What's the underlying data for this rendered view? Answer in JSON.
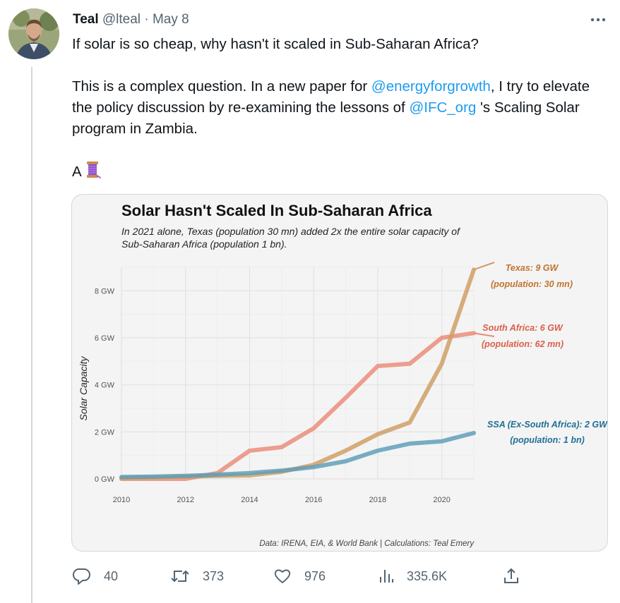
{
  "tweet": {
    "author_name": "Teal",
    "author_handle": "@lteal",
    "date": "May 8",
    "separator": " · ",
    "line1": "If solar is so cheap, why hasn't it scaled in Sub-Saharan Africa?",
    "para2_a": "This is a complex question. In a new paper for ",
    "mention1": "@energyforgrowth",
    "para2_b": ", I try to elevate the policy discussion by re-examining the lessons of ",
    "mention2": "@IFC_org",
    "para2_c": " 's Scaling Solar program in Zambia.",
    "para3": "A",
    "thread_emoji": "spool-of-thread-icon"
  },
  "chart_data": {
    "type": "line",
    "title": "Solar Hasn't Scaled In Sub-Saharan Africa",
    "subtitle_line1": "In 2021 alone, Texas (population 30 mn) added 2x the entire solar capacity of",
    "subtitle_line2": "Sub-Saharan Africa (population 1 bn).",
    "ylabel": "Solar Capacity",
    "xlabel": "",
    "source": "Data: IRENA, EIA, & World Bank | Calculations: Teal Emery",
    "xlim": [
      2010,
      2021
    ],
    "ylim": [
      0,
      9
    ],
    "x_ticks": [
      2010,
      2012,
      2014,
      2016,
      2018,
      2020
    ],
    "y_ticks": [
      {
        "value": 0,
        "label": "0 GW"
      },
      {
        "value": 2,
        "label": "2 GW"
      },
      {
        "value": 4,
        "label": "4 GW"
      },
      {
        "value": 6,
        "label": "6 GW"
      },
      {
        "value": 8,
        "label": "8 GW"
      }
    ],
    "grid": true,
    "x": [
      2010,
      2011,
      2012,
      2013,
      2014,
      2015,
      2016,
      2017,
      2018,
      2019,
      2020,
      2021
    ],
    "series": [
      {
        "name": "South Africa",
        "label_line1": "South Africa: 6 GW",
        "label_line2": "(population: 62 mn)",
        "color": "#ea8a78",
        "values": [
          0.0,
          0.0,
          0.0,
          0.25,
          1.2,
          1.35,
          2.15,
          3.45,
          4.8,
          4.9,
          6.0,
          6.2
        ]
      },
      {
        "name": "Texas",
        "label_line1": "Texas: 9 GW",
        "label_line2": "(population: 30 mn)",
        "color": "#cf9c62",
        "values": [
          0.03,
          0.06,
          0.1,
          0.13,
          0.15,
          0.3,
          0.6,
          1.2,
          1.9,
          2.4,
          4.9,
          8.9
        ]
      },
      {
        "name": "SSA (Ex-South Africa)",
        "label_line1": "SSA (Ex-South Africa): 2 GW",
        "label_line2": "(population: 1 bn)",
        "color": "#5b9cb8",
        "values": [
          0.08,
          0.1,
          0.13,
          0.18,
          0.25,
          0.35,
          0.5,
          0.75,
          1.2,
          1.5,
          1.6,
          1.95
        ]
      }
    ],
    "label_colors": {
      "Texas": "#c0742f",
      "South Africa": "#d9604a",
      "SSA (Ex-South Africa)": "#1f6f96"
    }
  },
  "actions": {
    "replies": "40",
    "retweets": "373",
    "likes": "976",
    "views": "335.6K"
  }
}
